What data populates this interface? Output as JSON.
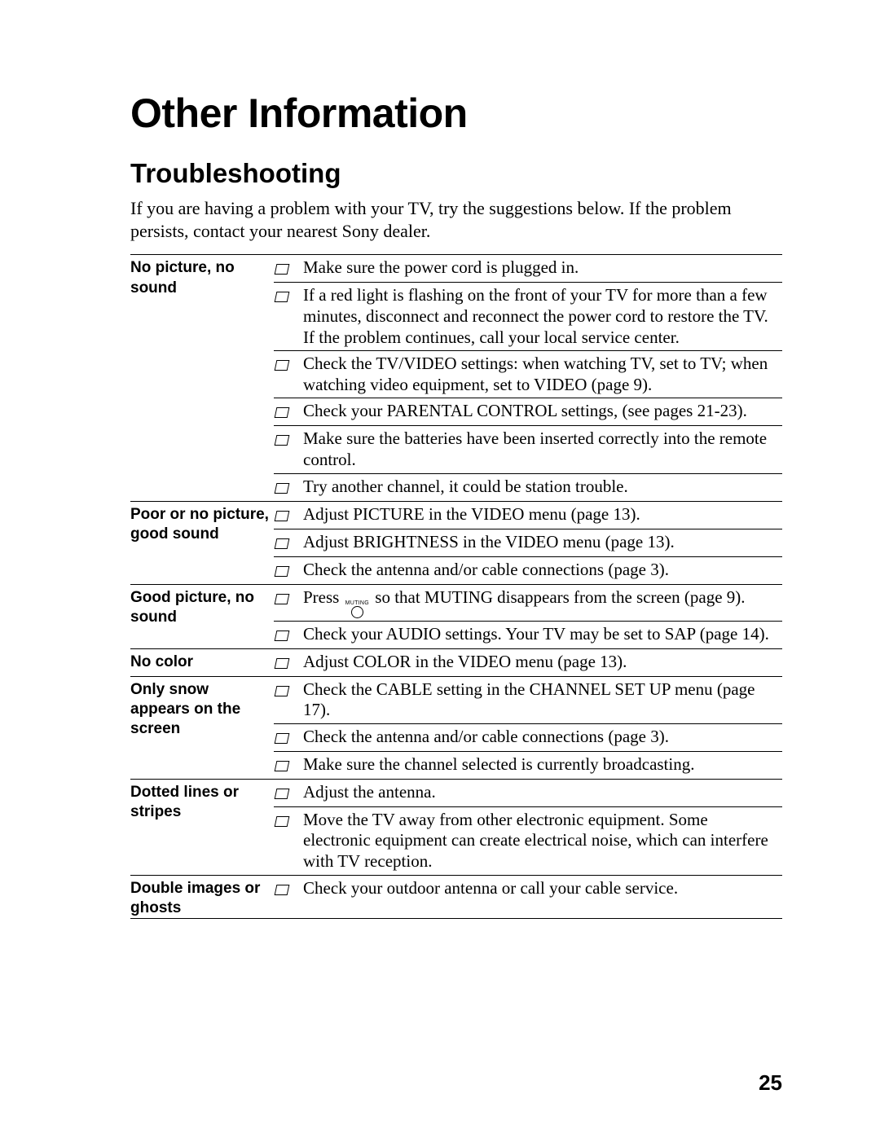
{
  "page_title": "Other Information",
  "section_title": "Troubleshooting",
  "intro": "If you are having a problem with your TV, try the suggestions below. If the problem persists, contact your nearest Sony dealer.",
  "page_number": "25",
  "muting_label": "MUTING",
  "sections": [
    {
      "problem": "No picture, no sound",
      "items": [
        "Make sure the power cord is plugged in.",
        "If a red light is flashing on the front of your TV for more than a few minutes, disconnect and reconnect the power cord to restore the TV. If the problem continues, call your local service center.",
        "Check the TV/VIDEO settings: when watching TV, set to TV; when watching video equipment, set to VIDEO (page 9).",
        "Check your PARENTAL CONTROL settings, (see pages 21-23).",
        "Make sure the batteries have been inserted correctly into the remote control.",
        "Try another channel, it could be station trouble."
      ]
    },
    {
      "problem": "Poor or no picture, good sound",
      "items": [
        "Adjust PICTURE in the VIDEO menu (page 13).",
        "Adjust BRIGHTNESS in the VIDEO menu (page 13).",
        "Check the antenna and/or cable connections (page 3)."
      ]
    },
    {
      "problem": "Good picture, no sound",
      "items": [
        {
          "pre": "Press ",
          "icon": true,
          "post": " so that MUTING disappears from the screen (page 9)."
        },
        "Check your AUDIO settings. Your TV may be set to SAP (page 14)."
      ]
    },
    {
      "problem": "No color",
      "items": [
        "Adjust COLOR in the VIDEO menu (page 13)."
      ]
    },
    {
      "problem": "Only snow appears on the screen",
      "items": [
        "Check the CABLE setting in the CHANNEL SET UP menu (page 17).",
        "Check the antenna and/or cable connections (page 3).",
        "Make sure the channel selected is currently broadcasting."
      ]
    },
    {
      "problem": "Dotted lines or stripes",
      "items": [
        "Adjust the antenna.",
        "Move the TV away from other electronic equipment. Some electronic equipment can create electrical noise, which can interfere with TV reception."
      ]
    },
    {
      "problem": "Double images or ghosts",
      "items": [
        "Check your outdoor antenna or call your cable service."
      ]
    }
  ]
}
